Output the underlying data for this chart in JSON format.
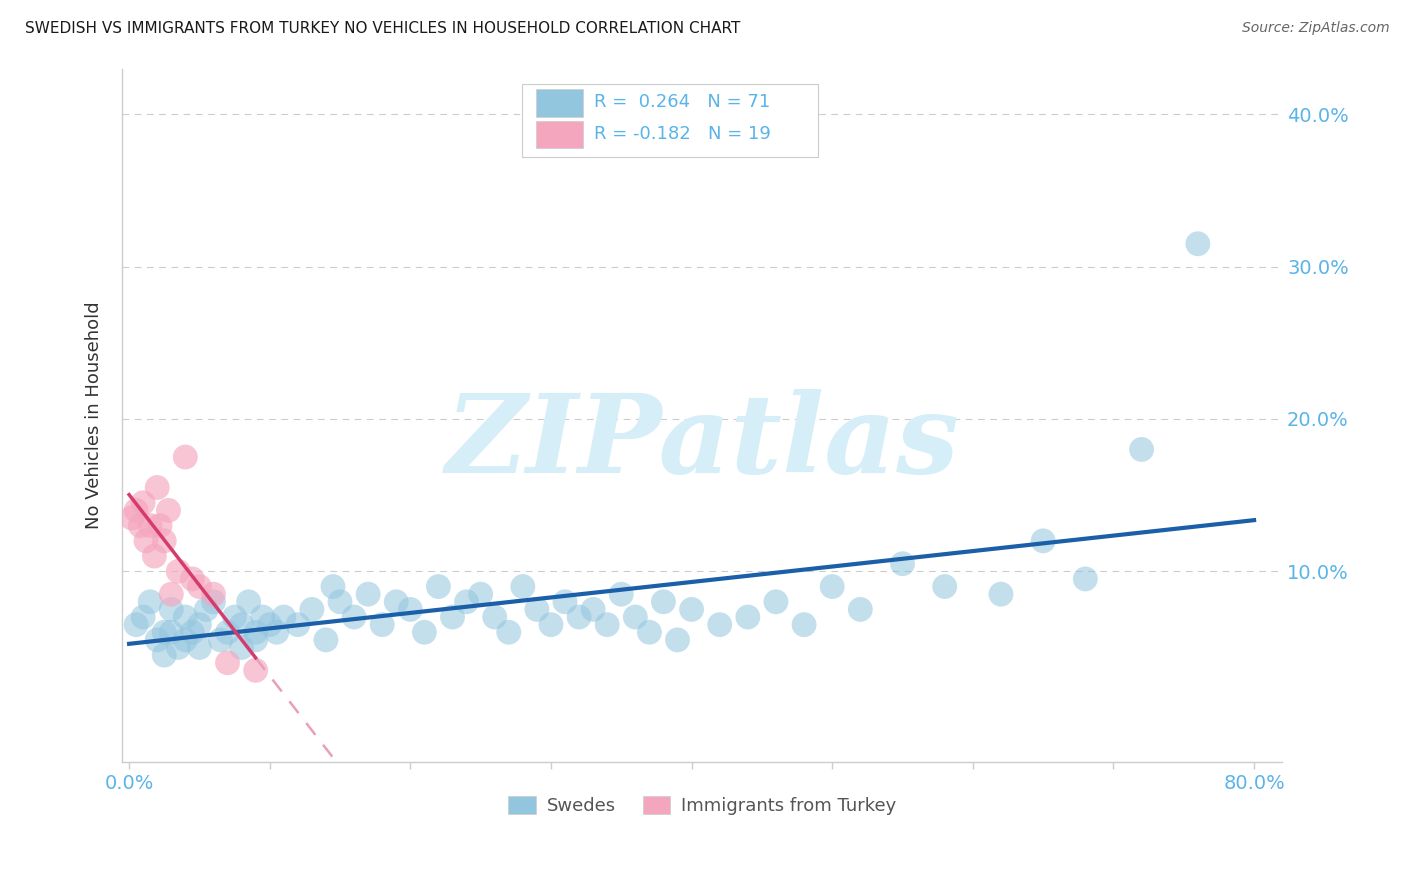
{
  "title": "SWEDISH VS IMMIGRANTS FROM TURKEY NO VEHICLES IN HOUSEHOLD CORRELATION CHART",
  "source": "Source: ZipAtlas.com",
  "ylabel": "No Vehicles in Household",
  "xlim": [
    -0.005,
    0.82
  ],
  "ylim": [
    -0.025,
    0.43
  ],
  "legend_R_blue": "0.264",
  "legend_N_blue": "71",
  "legend_R_pink": "-0.182",
  "legend_N_pink": "19",
  "blue_scatter_color": "#92c5de",
  "blue_line_color": "#1a5fa8",
  "pink_scatter_color": "#f4a6be",
  "pink_solid_color": "#d63b6e",
  "pink_dash_color": "#e8a0b8",
  "watermark_color": "#d6eef8",
  "axis_tick_color": "#5ab4e8",
  "title_color": "#1a1a1a",
  "swedes_x": [
    0.005,
    0.01,
    0.015,
    0.02,
    0.025,
    0.025,
    0.03,
    0.03,
    0.035,
    0.04,
    0.04,
    0.045,
    0.05,
    0.05,
    0.055,
    0.06,
    0.065,
    0.07,
    0.075,
    0.08,
    0.08,
    0.085,
    0.09,
    0.09,
    0.095,
    0.1,
    0.105,
    0.11,
    0.12,
    0.13,
    0.14,
    0.145,
    0.15,
    0.16,
    0.17,
    0.18,
    0.19,
    0.2,
    0.21,
    0.22,
    0.23,
    0.24,
    0.25,
    0.26,
    0.27,
    0.28,
    0.29,
    0.3,
    0.31,
    0.32,
    0.33,
    0.34,
    0.35,
    0.36,
    0.37,
    0.38,
    0.39,
    0.4,
    0.42,
    0.44,
    0.46,
    0.48,
    0.5,
    0.52,
    0.55,
    0.58,
    0.62,
    0.65,
    0.68,
    0.72,
    0.76
  ],
  "swedes_y": [
    0.065,
    0.07,
    0.08,
    0.055,
    0.06,
    0.045,
    0.075,
    0.06,
    0.05,
    0.055,
    0.07,
    0.06,
    0.065,
    0.05,
    0.075,
    0.08,
    0.055,
    0.06,
    0.07,
    0.065,
    0.05,
    0.08,
    0.06,
    0.055,
    0.07,
    0.065,
    0.06,
    0.07,
    0.065,
    0.075,
    0.055,
    0.09,
    0.08,
    0.07,
    0.085,
    0.065,
    0.08,
    0.075,
    0.06,
    0.09,
    0.07,
    0.08,
    0.085,
    0.07,
    0.06,
    0.09,
    0.075,
    0.065,
    0.08,
    0.07,
    0.075,
    0.065,
    0.085,
    0.07,
    0.06,
    0.08,
    0.055,
    0.075,
    0.065,
    0.07,
    0.08,
    0.065,
    0.09,
    0.075,
    0.105,
    0.09,
    0.085,
    0.12,
    0.095,
    0.18,
    0.315
  ],
  "turkey_x": [
    0.002,
    0.005,
    0.008,
    0.01,
    0.012,
    0.015,
    0.018,
    0.02,
    0.022,
    0.025,
    0.028,
    0.03,
    0.035,
    0.04,
    0.045,
    0.05,
    0.06,
    0.07,
    0.09
  ],
  "turkey_y": [
    0.135,
    0.14,
    0.13,
    0.145,
    0.12,
    0.13,
    0.11,
    0.155,
    0.13,
    0.12,
    0.14,
    0.085,
    0.1,
    0.175,
    0.095,
    0.09,
    0.085,
    0.04,
    0.035
  ]
}
